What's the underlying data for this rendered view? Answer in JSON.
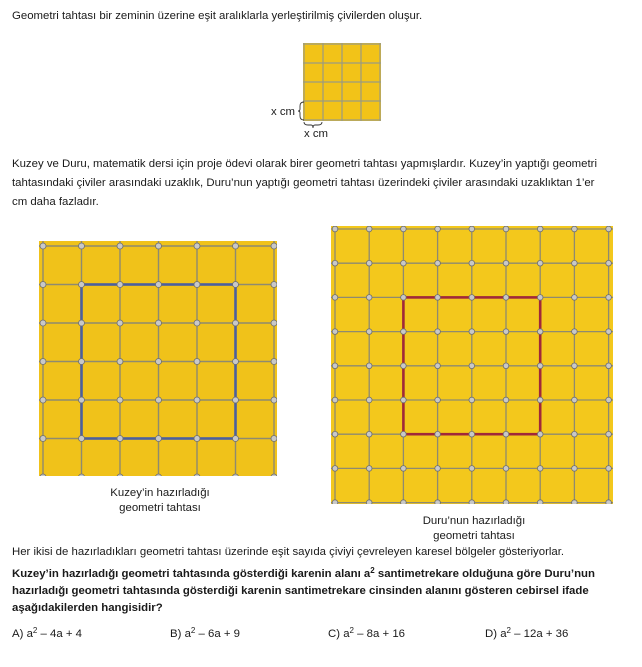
{
  "intro": "Geometri tahtası bir zeminin üzerine eşit aralıklarla yerleştirilmiş çivilerden oluşur.",
  "small_board": {
    "side_label": "x cm",
    "bottom_label": "x cm",
    "board_color": "#f2c318",
    "grid_color": "#9a9a82"
  },
  "paragraph_lines": [
    "Kuzey ve Duru, matematik dersi için proje ödevi olarak birer geometri tahtası yapmışlardır. Kuzey’in yaptığı geometri",
    "tahtasındaki çiviler arasındaki uzaklık, Duru’nun yaptığı geometri tahtası üzerindeki çiviler arasındaki uzaklıktan 1’er",
    "cm daha fazladır."
  ],
  "kuzey_board": {
    "caption_line1": "Kuzey’in hazırladığı",
    "caption_line2": "geometri tahtası",
    "square_color": "#4b5f9e",
    "board_color": "#f0c21a"
  },
  "duru_board": {
    "caption_line1": "Duru’nun hazırladığı",
    "caption_line2": "geometri tahtası",
    "square_color": "#a0283a",
    "board_color": "#f3c81c"
  },
  "statement": "Her ikisi de hazırladıkları geometri tahtası üzerinde eşit sayıda çiviyi çevreleyen karesel bölgeler gösteriyorlar.",
  "question": {
    "line1_a": "Kuzey’in hazırladığı geometri tahtasında gösterdiği karenin alanı a",
    "line1_sup": "2",
    "line1_b": " santimetrekare olduğuna göre Duru’nun",
    "line2": "hazırladığı geometri tahtasında gösterdiği karenin santimetrekare cinsinden alanını gösteren cebirsel ifade",
    "line3": "aşağıdakilerden hangisidir?"
  },
  "options": [
    {
      "letter": "A)",
      "base": "a",
      "sup": "2",
      "rest": " – 4a + 4"
    },
    {
      "letter": "B)",
      "base": "a",
      "sup": "2",
      "rest": " – 6a + 9"
    },
    {
      "letter": "C)",
      "base": "a",
      "sup": "2",
      "rest": " – 8a + 16"
    },
    {
      "letter": "D)",
      "base": "a",
      "sup": "2",
      "rest": " – 12a + 36"
    }
  ]
}
